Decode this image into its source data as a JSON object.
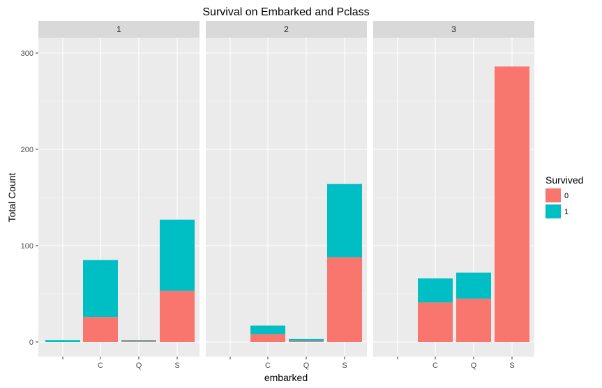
{
  "chart_data": {
    "type": "bar",
    "stacked": true,
    "title": "Survival on Embarked and Pclass",
    "xlabel": "embarked",
    "ylabel": "Total Count",
    "ylim": [
      0,
      310
    ],
    "yticks": [
      0,
      100,
      200,
      300
    ],
    "categories": [
      "",
      "C",
      "Q",
      "S"
    ],
    "legend": {
      "title": "Survived",
      "position": "right",
      "entries": [
        {
          "label": "0",
          "color": "#F8766D"
        },
        {
          "label": "1",
          "color": "#00BFC4"
        }
      ]
    },
    "facets": [
      {
        "label": "1",
        "series": [
          {
            "name": "0",
            "values": [
              0,
              26,
              1,
              53
            ]
          },
          {
            "name": "1",
            "values": [
              2,
              59,
              1,
              74
            ]
          }
        ]
      },
      {
        "label": "2",
        "series": [
          {
            "name": "0",
            "values": [
              0,
              8,
              1,
              88
            ]
          },
          {
            "name": "1",
            "values": [
              0,
              9,
              2,
              76
            ]
          }
        ]
      },
      {
        "label": "3",
        "series": [
          {
            "name": "0",
            "values": [
              0,
              41,
              45,
              286
            ]
          },
          {
            "name": "1",
            "values": [
              0,
              25,
              27,
              0
            ]
          }
        ]
      }
    ],
    "grid": true
  }
}
